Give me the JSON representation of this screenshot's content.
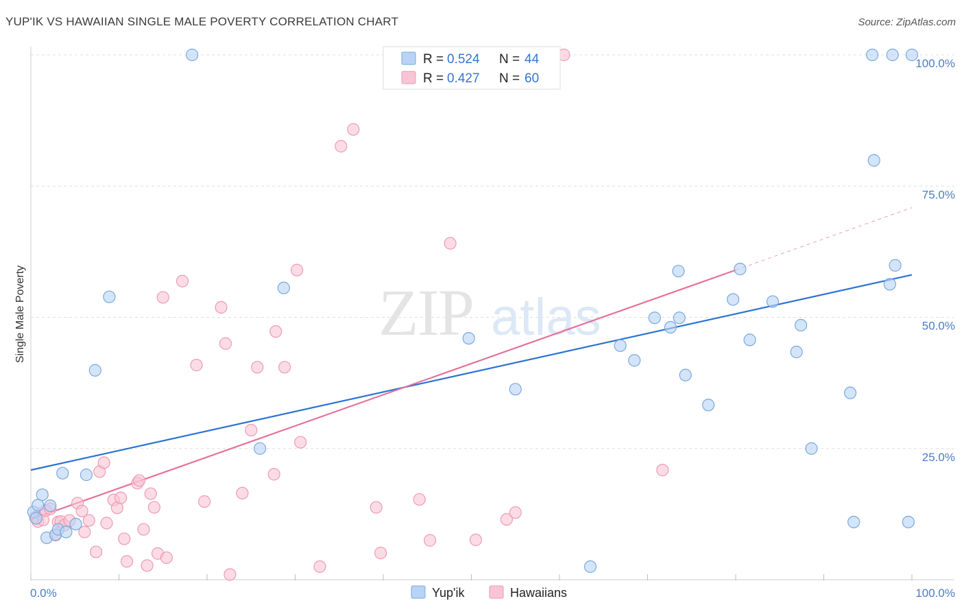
{
  "header": {
    "title": "YUP'IK VS HAWAIIAN SINGLE MALE POVERTY CORRELATION CHART",
    "source": "Source: ZipAtlas.com"
  },
  "colors": {
    "series1_fill": "#b8d3f5",
    "series1_stroke": "#7aa7de",
    "series1_line": "#2a72d3",
    "series2_fill": "#f9c4d4",
    "series2_stroke": "#ee9ab5",
    "series2_line": "#e5719b",
    "tick_label": "#4a7cc8",
    "grid": "#dddddd"
  },
  "legend_top": [
    {
      "r_label": "R =",
      "r_value": "0.524",
      "n_label": "N =",
      "n_value": "44"
    },
    {
      "r_label": "R =",
      "r_value": "0.427",
      "n_label": "N =",
      "n_value": "60"
    }
  ],
  "chart_data": {
    "type": "scatter",
    "title": "YUP'IK VS HAWAIIAN SINGLE MALE POVERTY CORRELATION CHART",
    "xlabel": "",
    "ylabel": "Single Male Poverty",
    "xlim": [
      0,
      100
    ],
    "ylim": [
      0,
      100
    ],
    "x_tick_labels": [
      "0.0%",
      "100.0%"
    ],
    "y_tick_labels": [
      "25.0%",
      "50.0%",
      "75.0%",
      "100.0%"
    ],
    "y_tick_values": [
      25,
      50,
      75,
      100
    ],
    "grid": true,
    "watermark": {
      "zip": "ZIP",
      "atlas": "atlas"
    },
    "series": [
      {
        "name": "Yup'ik",
        "r": 0.524,
        "n": 44,
        "trend": {
          "x0": 0,
          "y0": 20.9,
          "x1": 100,
          "y1": 58.1
        },
        "points": [
          [
            0.3,
            12.9
          ],
          [
            0.8,
            14.2
          ],
          [
            1.3,
            16.2
          ],
          [
            1.8,
            8.0
          ],
          [
            2.2,
            14.1
          ],
          [
            2.8,
            8.6
          ],
          [
            3.1,
            9.6
          ],
          [
            3.6,
            20.3
          ],
          [
            4.0,
            9.1
          ],
          [
            5.1,
            10.6
          ],
          [
            6.3,
            20.0
          ],
          [
            7.3,
            39.9
          ],
          [
            8.9,
            53.9
          ],
          [
            18.3,
            100
          ],
          [
            26.0,
            25.0
          ],
          [
            28.7,
            55.6
          ],
          [
            49.7,
            46.0
          ],
          [
            55.0,
            36.3
          ],
          [
            63.5,
            2.5
          ],
          [
            66.9,
            44.6
          ],
          [
            68.5,
            41.8
          ],
          [
            70.8,
            49.9
          ],
          [
            72.6,
            48.1
          ],
          [
            73.5,
            58.8
          ],
          [
            73.6,
            49.9
          ],
          [
            74.3,
            39.0
          ],
          [
            76.9,
            33.3
          ],
          [
            79.7,
            53.4
          ],
          [
            80.5,
            59.2
          ],
          [
            81.6,
            45.7
          ],
          [
            84.2,
            53.0
          ],
          [
            86.9,
            43.4
          ],
          [
            87.4,
            48.5
          ],
          [
            88.6,
            25.0
          ],
          [
            93.0,
            35.6
          ],
          [
            93.4,
            11.0
          ],
          [
            95.5,
            100
          ],
          [
            95.7,
            79.9
          ],
          [
            97.5,
            56.3
          ],
          [
            97.8,
            100
          ],
          [
            98.1,
            59.9
          ],
          [
            99.6,
            11.0
          ],
          [
            100,
            100
          ],
          [
            0.6,
            11.7
          ]
        ]
      },
      {
        "name": "Hawaiians",
        "r": 0.427,
        "n": 60,
        "trend": {
          "x0": 0,
          "y0": 11.5,
          "x1": 80.0,
          "y1": 59.0,
          "dash_x1": 100,
          "dash_y1": 70.9
        },
        "points": [
          [
            0.5,
            11.9
          ],
          [
            0.8,
            11.1
          ],
          [
            1.0,
            12.6
          ],
          [
            1.4,
            11.4
          ],
          [
            1.7,
            13.2
          ],
          [
            2.2,
            13.5
          ],
          [
            2.8,
            8.5
          ],
          [
            3.1,
            11.0
          ],
          [
            3.4,
            11.1
          ],
          [
            3.8,
            10.4
          ],
          [
            4.4,
            11.3
          ],
          [
            5.3,
            14.6
          ],
          [
            5.8,
            13.1
          ],
          [
            6.1,
            9.1
          ],
          [
            6.6,
            11.3
          ],
          [
            7.4,
            5.3
          ],
          [
            7.8,
            20.6
          ],
          [
            8.3,
            22.3
          ],
          [
            8.6,
            10.8
          ],
          [
            9.4,
            15.2
          ],
          [
            9.8,
            13.7
          ],
          [
            10.2,
            15.6
          ],
          [
            10.6,
            7.8
          ],
          [
            10.9,
            3.5
          ],
          [
            12.1,
            18.4
          ],
          [
            12.3,
            18.9
          ],
          [
            12.8,
            9.6
          ],
          [
            13.2,
            2.7
          ],
          [
            13.6,
            16.4
          ],
          [
            14.0,
            13.8
          ],
          [
            14.4,
            5.0
          ],
          [
            15.0,
            53.8
          ],
          [
            15.4,
            4.2
          ],
          [
            17.2,
            56.9
          ],
          [
            18.8,
            40.9
          ],
          [
            19.7,
            14.9
          ],
          [
            21.6,
            51.9
          ],
          [
            22.1,
            45.0
          ],
          [
            22.6,
            1.0
          ],
          [
            24.0,
            16.5
          ],
          [
            25.0,
            28.5
          ],
          [
            25.7,
            40.5
          ],
          [
            27.6,
            20.1
          ],
          [
            27.8,
            47.3
          ],
          [
            28.8,
            40.5
          ],
          [
            30.2,
            59.0
          ],
          [
            30.6,
            26.2
          ],
          [
            32.8,
            2.5
          ],
          [
            35.2,
            82.6
          ],
          [
            36.6,
            85.8
          ],
          [
            39.2,
            13.8
          ],
          [
            39.7,
            5.1
          ],
          [
            44.1,
            15.3
          ],
          [
            45.3,
            7.5
          ],
          [
            47.6,
            64.1
          ],
          [
            50.5,
            7.6
          ],
          [
            54.0,
            11.5
          ],
          [
            55.0,
            12.8
          ],
          [
            60.5,
            100
          ],
          [
            71.7,
            20.9
          ]
        ]
      }
    ]
  },
  "legend_bottom": [
    {
      "label": "Yup'ik"
    },
    {
      "label": "Hawaiians"
    }
  ]
}
